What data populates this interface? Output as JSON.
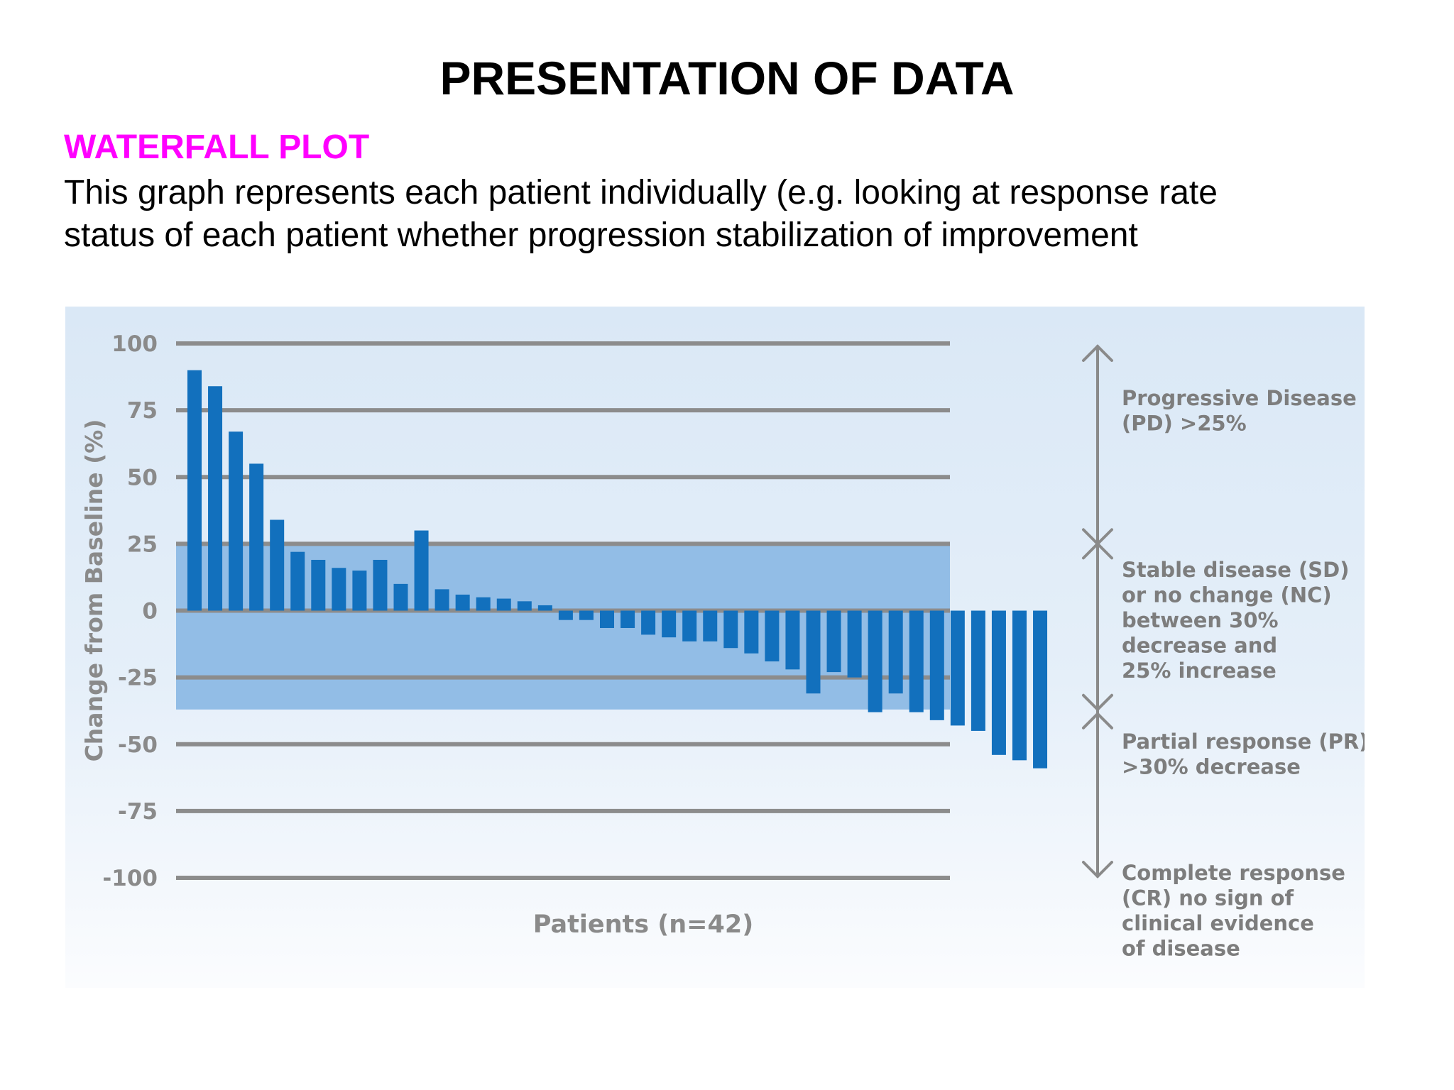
{
  "slide": {
    "title": "PRESENTATION OF DATA",
    "section_title": "WATERFALL PLOT",
    "description_lines": [
      "This graph represents each patient individually (e.g. looking at response rate",
      "status of each patient whether progression stabilization of improvement"
    ]
  },
  "colors": {
    "bar": "#1270bd",
    "stable_band": "#92bde6",
    "chart_background": "#dce9f5",
    "gridline": "#8c8c8c",
    "section_title": "#ff00ff"
  },
  "chart_data": {
    "type": "bar",
    "title": "",
    "xlabel": "Patients (n=42)",
    "ylabel": "Change from Baseline (%)",
    "ylim": [
      -100,
      100
    ],
    "yticks": [
      100,
      75,
      50,
      25,
      0,
      -25,
      -50,
      -75,
      -100
    ],
    "grid": true,
    "stable_band": [
      -37,
      25
    ],
    "values": [
      90,
      84,
      67,
      55,
      34,
      22,
      19,
      16,
      15,
      19,
      10,
      30,
      8,
      6,
      5,
      4.5,
      3.5,
      2,
      -3.5,
      -3.5,
      -6.5,
      -6.5,
      -9,
      -10,
      -11.5,
      -11.5,
      -14,
      -16,
      -19,
      -22,
      -31,
      -23,
      -25,
      -38,
      -31,
      -38,
      -41,
      -43,
      -45,
      -54,
      -56,
      -59
    ],
    "response_categories": [
      {
        "lines": [
          "Progressive Disease",
          "(PD) >25%"
        ]
      },
      {
        "lines": [
          "Stable disease (SD)",
          "or no change (NC)",
          "between 30%",
          "decrease and",
          "25% increase"
        ]
      },
      {
        "lines": [
          "Partial response (PR)",
          ">30% decrease"
        ]
      },
      {
        "lines": [
          "Complete response",
          "(CR) no sign of",
          "clinical evidence",
          "of disease"
        ]
      }
    ]
  }
}
